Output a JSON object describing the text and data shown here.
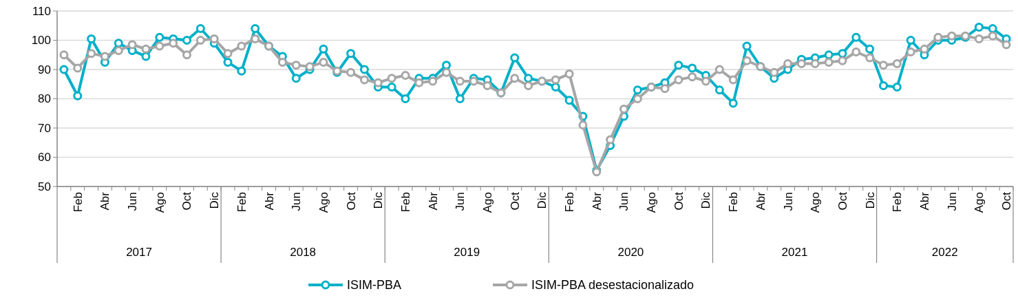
{
  "chart_data": {
    "type": "line",
    "categories": [
      null,
      "Feb",
      null,
      "Abr",
      null,
      "Jun",
      null,
      "Ago",
      null,
      "Oct",
      null,
      "Dic",
      null,
      "Feb",
      null,
      "Abr",
      null,
      "Jun",
      null,
      "Ago",
      null,
      "Oct",
      null,
      "Dic",
      null,
      "Feb",
      null,
      "Abr",
      null,
      "Jun",
      null,
      "Ago",
      null,
      "Oct",
      null,
      "Dic",
      null,
      "Feb",
      null,
      "Abr",
      null,
      "Jun",
      null,
      "Ago",
      null,
      "Oct",
      null,
      "Dic",
      null,
      "Feb",
      null,
      "Abr",
      null,
      "Jun",
      null,
      "Ago",
      null,
      "Oct",
      null,
      "Dic",
      null,
      "Feb",
      null,
      "Abr",
      null,
      "Jun",
      null,
      "Ago",
      null,
      "Oct"
    ],
    "annotations": [
      "2017",
      "2018",
      "2019",
      "2020",
      "2021",
      "2022"
    ],
    "series": [
      {
        "name": "ISIM-PBA",
        "color": "#00b0c8",
        "values": [
          90,
          81,
          100.5,
          92.5,
          99,
          96.5,
          94.5,
          101,
          100.5,
          100,
          104,
          99,
          92.5,
          89.5,
          104,
          98,
          94.5,
          87,
          90,
          97,
          89,
          95.5,
          90,
          84,
          84,
          80,
          87,
          87,
          91.5,
          80,
          87,
          86.5,
          82,
          94,
          87,
          86,
          84,
          79.5,
          74,
          55.5,
          64,
          74,
          83,
          84,
          85.5,
          91.5,
          90.5,
          88,
          83,
          78.5,
          98,
          91,
          87,
          90,
          93.5,
          94,
          95,
          95.5,
          101,
          97,
          84.5,
          84,
          100,
          95,
          100,
          100,
          101,
          104.5,
          104,
          100.5
        ]
      },
      {
        "name": "ISIM-PBA desestacionalizado",
        "color": "#a6a6a6",
        "values": [
          95,
          90.5,
          95.5,
          94.5,
          96.5,
          98.5,
          97,
          98,
          99,
          95,
          100,
          100.5,
          95.5,
          98,
          100.5,
          98,
          92.5,
          91.5,
          91,
          92.5,
          89.5,
          89,
          86.5,
          85.5,
          87,
          88,
          85.5,
          86,
          89,
          86,
          86,
          84.5,
          82,
          87,
          84.5,
          86,
          86.5,
          88.5,
          71,
          55,
          66,
          76.5,
          80,
          84,
          83.5,
          86.5,
          87.5,
          86,
          90,
          86.5,
          93,
          91,
          89,
          92,
          92,
          92,
          92.5,
          93,
          96,
          94,
          91.5,
          92,
          96,
          97,
          101,
          101.5,
          101.5,
          100.5,
          101.5,
          98.5
        ]
      }
    ],
    "ylim": [
      50,
      110
    ],
    "yticks": [
      50,
      60,
      70,
      80,
      90,
      100,
      110
    ],
    "grid": "y",
    "legend": "bottom",
    "marker": "circle",
    "line_style": "solid"
  }
}
